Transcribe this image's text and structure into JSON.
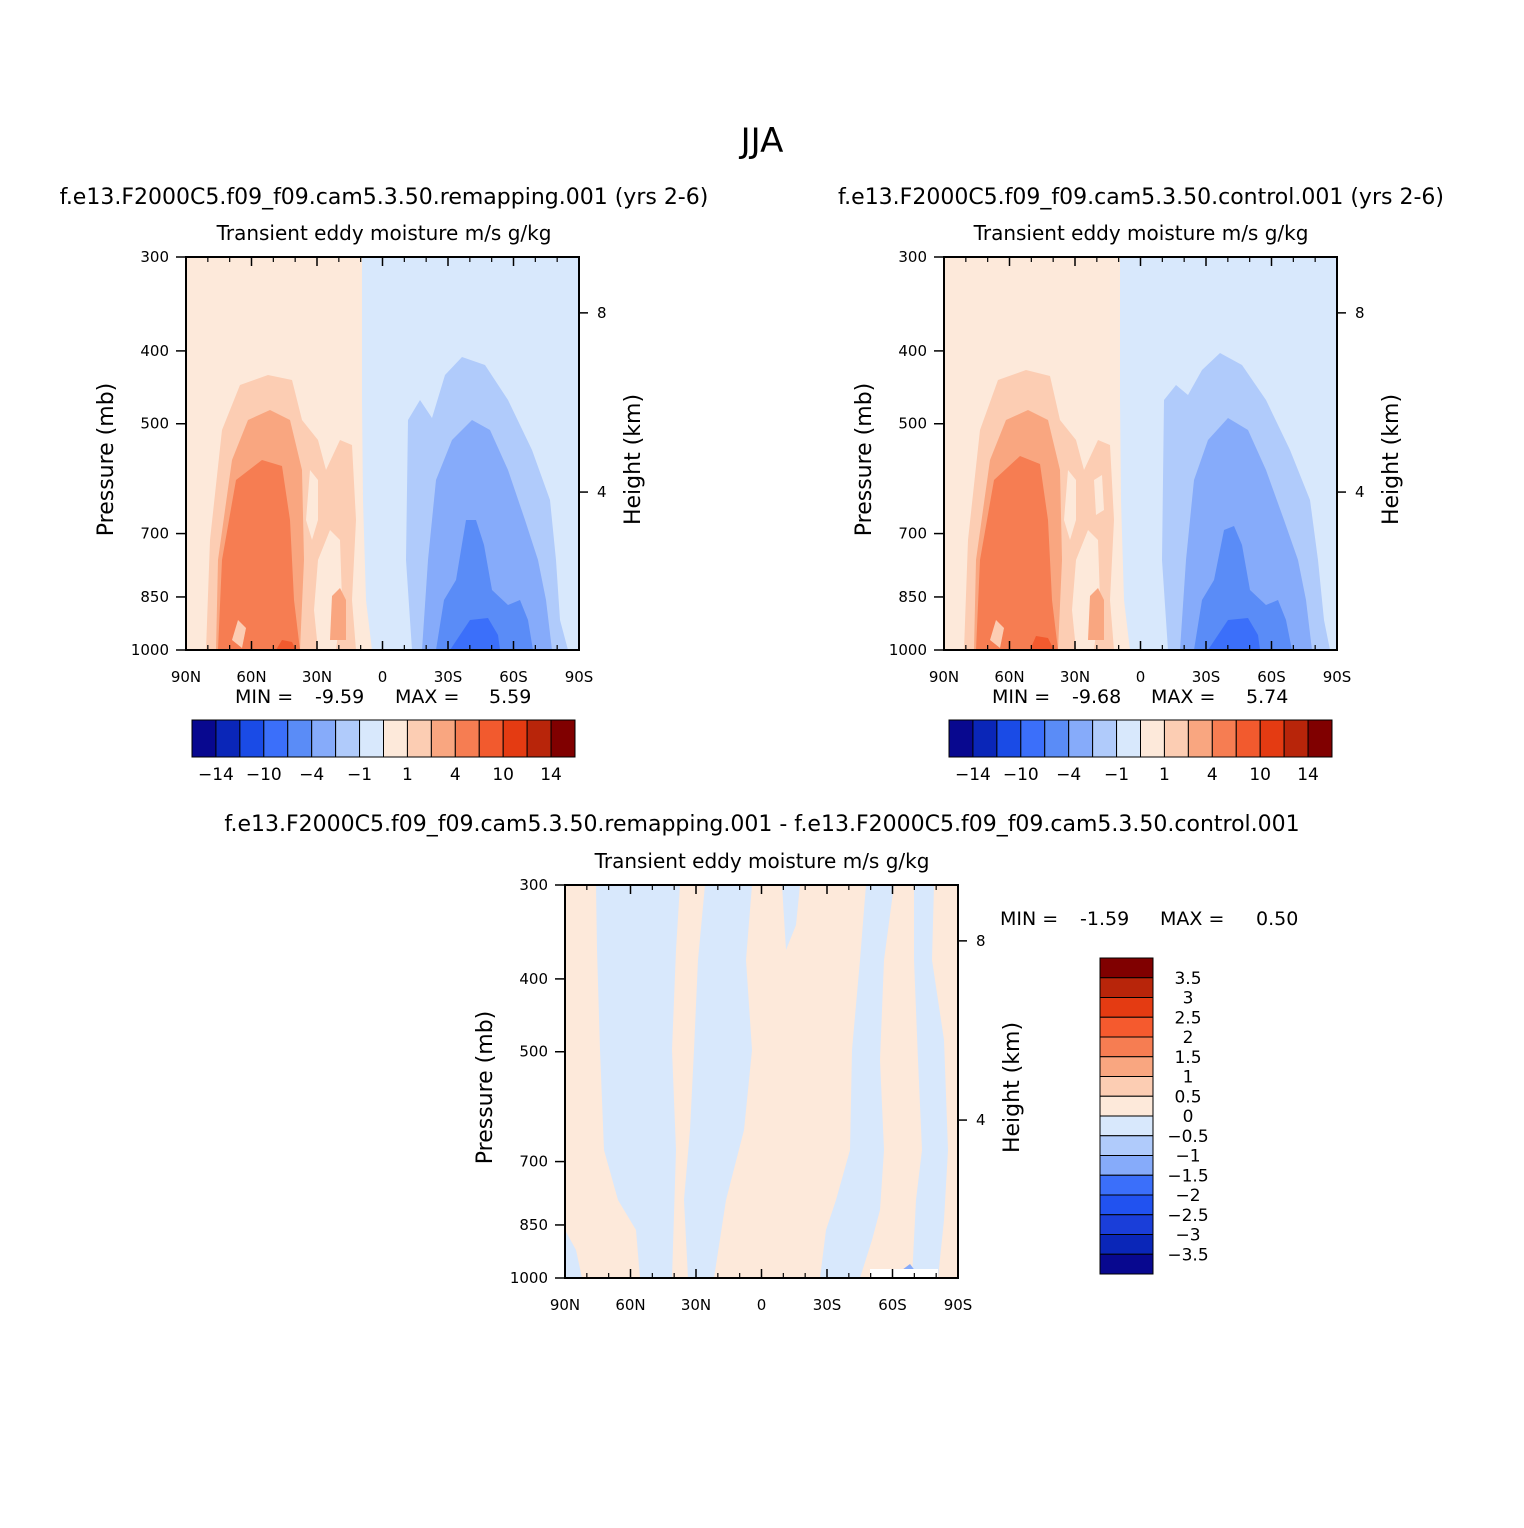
{
  "figure": {
    "title": "JJA"
  },
  "colors": {
    "main_scale": [
      "#08088f",
      "#0a26b8",
      "#1a4be6",
      "#3b6ffa",
      "#5a8cf7",
      "#86abfa",
      "#b0cbfb",
      "#d8e8fc",
      "#fde9da",
      "#fccdb3",
      "#f9a680",
      "#f67d52",
      "#f25a2e",
      "#e43b12",
      "#b8250a",
      "#800000"
    ],
    "diff_scale": [
      "#08088f",
      "#0a26b8",
      "#1a3ed9",
      "#2152f0",
      "#3b6ffa",
      "#86abfa",
      "#b0cbfb",
      "#d8e8fc",
      "#fde9da",
      "#fccdb3",
      "#f9a680",
      "#f67d52",
      "#f55a2e",
      "#e43b12",
      "#b8250a",
      "#800000"
    ]
  },
  "chart_data": [
    {
      "type": "heatmap",
      "title": "f.e13.F2000C5.f09_f09.cam5.3.50.remapping.001 (yrs 2-6)",
      "subtitle": "Transient eddy moisture m/s g/kg",
      "xlabel": "",
      "ylabel": "Pressure (mb)",
      "y2label": "Height (km)",
      "x_ticks": [
        "90N",
        "60N",
        "30N",
        "0",
        "30S",
        "60S",
        "90S"
      ],
      "y_ticks": [
        "300",
        "400",
        "500",
        "700",
        "850",
        "1000"
      ],
      "y2_ticks": [
        "8",
        "4"
      ],
      "ylim": [
        1000,
        300
      ],
      "y_scale": "log",
      "stats": {
        "min_label": "MIN =",
        "min": "-9.59",
        "max_label": "MAX =",
        "max": "5.59"
      },
      "legend": {
        "position": "bottom",
        "labels": [
          "-14",
          "-10",
          "-4",
          "-1",
          "1",
          "4",
          "10",
          "14"
        ]
      }
    },
    {
      "type": "heatmap",
      "title": "f.e13.F2000C5.f09_f09.cam5.3.50.control.001 (yrs 2-6)",
      "subtitle": "Transient eddy moisture m/s g/kg",
      "xlabel": "",
      "ylabel": "Pressure (mb)",
      "y2label": "Height (km)",
      "x_ticks": [
        "90N",
        "60N",
        "30N",
        "0",
        "30S",
        "60S",
        "90S"
      ],
      "y_ticks": [
        "300",
        "400",
        "500",
        "700",
        "850",
        "1000"
      ],
      "y2_ticks": [
        "8",
        "4"
      ],
      "ylim": [
        1000,
        300
      ],
      "y_scale": "log",
      "stats": {
        "min_label": "MIN =",
        "min": "-9.68",
        "max_label": "MAX =",
        "max": "5.74"
      },
      "legend": {
        "position": "bottom",
        "labels": [
          "-14",
          "-10",
          "-4",
          "-1",
          "1",
          "4",
          "10",
          "14"
        ]
      }
    },
    {
      "type": "heatmap",
      "title": "f.e13.F2000C5.f09_f09.cam5.3.50.remapping.001 - f.e13.F2000C5.f09_f09.cam5.3.50.control.001",
      "subtitle": "Transient eddy moisture m/s g/kg",
      "xlabel": "",
      "ylabel": "Pressure (mb)",
      "y2label": "Height (km)",
      "x_ticks": [
        "90N",
        "60N",
        "30N",
        "0",
        "30S",
        "60S",
        "90S"
      ],
      "y_ticks": [
        "300",
        "400",
        "500",
        "700",
        "850",
        "1000"
      ],
      "y2_ticks": [
        "8",
        "4"
      ],
      "ylim": [
        1000,
        300
      ],
      "y_scale": "log",
      "stats": {
        "min_label": "MIN =",
        "min": "-1.59",
        "max_label": "MAX =",
        "max": "0.50"
      },
      "legend": {
        "position": "right",
        "labels": [
          "3.5",
          "3",
          "2.5",
          "2",
          "1.5",
          "1",
          "0.5",
          "0",
          "-0.5",
          "-1",
          "-1.5",
          "-2",
          "-2.5",
          "-3",
          "-3.5"
        ]
      }
    }
  ]
}
